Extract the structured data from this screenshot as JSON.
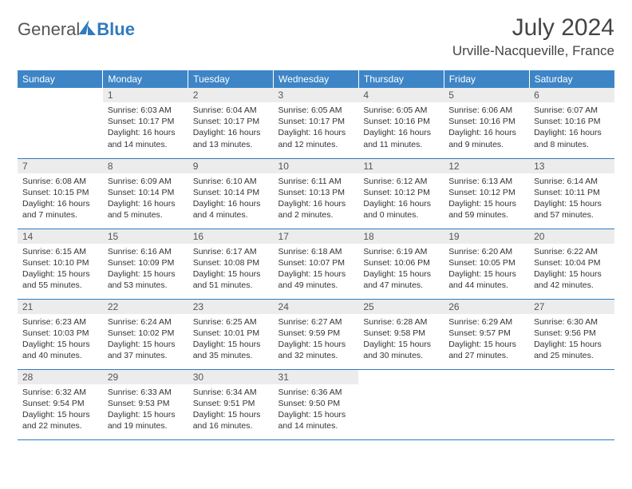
{
  "logo": {
    "word1": "General",
    "word2": "Blue"
  },
  "header": {
    "title": "July 2024",
    "location": "Urville-Nacqueville, France"
  },
  "styles": {
    "header_bg": "#3d85c6",
    "header_text": "#ffffff",
    "daynum_bg": "#ececec",
    "border_color": "#2f7bbf",
    "font_family": "Arial",
    "title_fontsize": 30,
    "subtitle_fontsize": 17,
    "th_fontsize": 12,
    "daynum_fontsize": 12,
    "content_fontsize": 10.5
  },
  "weekdays": [
    "Sunday",
    "Monday",
    "Tuesday",
    "Wednesday",
    "Thursday",
    "Friday",
    "Saturday"
  ],
  "days": [
    {
      "n": 1,
      "sr": "6:03 AM",
      "ss": "10:17 PM",
      "dl": "16 hours and 14 minutes."
    },
    {
      "n": 2,
      "sr": "6:04 AM",
      "ss": "10:17 PM",
      "dl": "16 hours and 13 minutes."
    },
    {
      "n": 3,
      "sr": "6:05 AM",
      "ss": "10:17 PM",
      "dl": "16 hours and 12 minutes."
    },
    {
      "n": 4,
      "sr": "6:05 AM",
      "ss": "10:16 PM",
      "dl": "16 hours and 11 minutes."
    },
    {
      "n": 5,
      "sr": "6:06 AM",
      "ss": "10:16 PM",
      "dl": "16 hours and 9 minutes."
    },
    {
      "n": 6,
      "sr": "6:07 AM",
      "ss": "10:16 PM",
      "dl": "16 hours and 8 minutes."
    },
    {
      "n": 7,
      "sr": "6:08 AM",
      "ss": "10:15 PM",
      "dl": "16 hours and 7 minutes."
    },
    {
      "n": 8,
      "sr": "6:09 AM",
      "ss": "10:14 PM",
      "dl": "16 hours and 5 minutes."
    },
    {
      "n": 9,
      "sr": "6:10 AM",
      "ss": "10:14 PM",
      "dl": "16 hours and 4 minutes."
    },
    {
      "n": 10,
      "sr": "6:11 AM",
      "ss": "10:13 PM",
      "dl": "16 hours and 2 minutes."
    },
    {
      "n": 11,
      "sr": "6:12 AM",
      "ss": "10:12 PM",
      "dl": "16 hours and 0 minutes."
    },
    {
      "n": 12,
      "sr": "6:13 AM",
      "ss": "10:12 PM",
      "dl": "15 hours and 59 minutes."
    },
    {
      "n": 13,
      "sr": "6:14 AM",
      "ss": "10:11 PM",
      "dl": "15 hours and 57 minutes."
    },
    {
      "n": 14,
      "sr": "6:15 AM",
      "ss": "10:10 PM",
      "dl": "15 hours and 55 minutes."
    },
    {
      "n": 15,
      "sr": "6:16 AM",
      "ss": "10:09 PM",
      "dl": "15 hours and 53 minutes."
    },
    {
      "n": 16,
      "sr": "6:17 AM",
      "ss": "10:08 PM",
      "dl": "15 hours and 51 minutes."
    },
    {
      "n": 17,
      "sr": "6:18 AM",
      "ss": "10:07 PM",
      "dl": "15 hours and 49 minutes."
    },
    {
      "n": 18,
      "sr": "6:19 AM",
      "ss": "10:06 PM",
      "dl": "15 hours and 47 minutes."
    },
    {
      "n": 19,
      "sr": "6:20 AM",
      "ss": "10:05 PM",
      "dl": "15 hours and 44 minutes."
    },
    {
      "n": 20,
      "sr": "6:22 AM",
      "ss": "10:04 PM",
      "dl": "15 hours and 42 minutes."
    },
    {
      "n": 21,
      "sr": "6:23 AM",
      "ss": "10:03 PM",
      "dl": "15 hours and 40 minutes."
    },
    {
      "n": 22,
      "sr": "6:24 AM",
      "ss": "10:02 PM",
      "dl": "15 hours and 37 minutes."
    },
    {
      "n": 23,
      "sr": "6:25 AM",
      "ss": "10:01 PM",
      "dl": "15 hours and 35 minutes."
    },
    {
      "n": 24,
      "sr": "6:27 AM",
      "ss": "9:59 PM",
      "dl": "15 hours and 32 minutes."
    },
    {
      "n": 25,
      "sr": "6:28 AM",
      "ss": "9:58 PM",
      "dl": "15 hours and 30 minutes."
    },
    {
      "n": 26,
      "sr": "6:29 AM",
      "ss": "9:57 PM",
      "dl": "15 hours and 27 minutes."
    },
    {
      "n": 27,
      "sr": "6:30 AM",
      "ss": "9:56 PM",
      "dl": "15 hours and 25 minutes."
    },
    {
      "n": 28,
      "sr": "6:32 AM",
      "ss": "9:54 PM",
      "dl": "15 hours and 22 minutes."
    },
    {
      "n": 29,
      "sr": "6:33 AM",
      "ss": "9:53 PM",
      "dl": "15 hours and 19 minutes."
    },
    {
      "n": 30,
      "sr": "6:34 AM",
      "ss": "9:51 PM",
      "dl": "15 hours and 16 minutes."
    },
    {
      "n": 31,
      "sr": "6:36 AM",
      "ss": "9:50 PM",
      "dl": "15 hours and 14 minutes."
    }
  ],
  "labels": {
    "sunrise": "Sunrise:",
    "sunset": "Sunset:",
    "daylight": "Daylight:"
  },
  "layout": {
    "start_weekday": 1,
    "columns": 7
  }
}
